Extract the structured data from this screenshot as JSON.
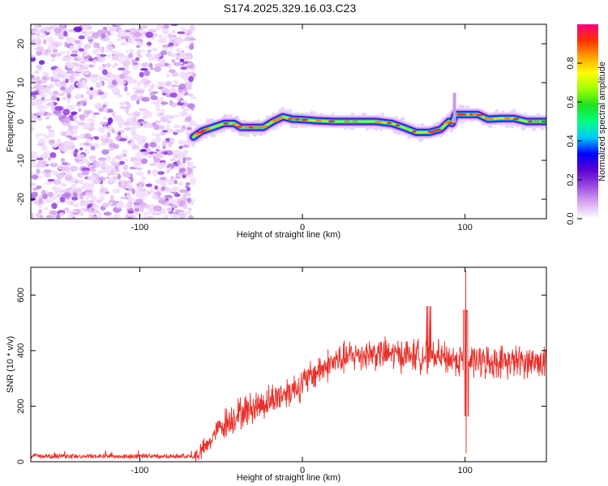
{
  "title": "S174.2025.329.16.03.C23",
  "chart_data": [
    {
      "type": "heatmap",
      "name": "spectrogram",
      "xlabel": "Height of straight line (km)",
      "ylabel": "Frequency (Hz)",
      "xlim": [
        -167,
        150
      ],
      "ylim": [
        -25,
        25
      ],
      "xticks": [
        -100,
        0,
        100
      ],
      "yticks": [
        -20,
        -10,
        0,
        10,
        20
      ],
      "noise_region_x": [
        -167,
        -67
      ],
      "ridge": [
        {
          "x": -67,
          "y": -4
        },
        {
          "x": -62,
          "y": -2.5
        },
        {
          "x": -55,
          "y": -1.5
        },
        {
          "x": -48,
          "y": -0.5
        },
        {
          "x": -42,
          "y": -0.5
        },
        {
          "x": -38,
          "y": -1.5
        },
        {
          "x": -30,
          "y": -1.5
        },
        {
          "x": -24,
          "y": -1.5
        },
        {
          "x": -18,
          "y": 0
        },
        {
          "x": -12,
          "y": 1.2
        },
        {
          "x": -6,
          "y": 0.6
        },
        {
          "x": 0,
          "y": 0.5
        },
        {
          "x": 8,
          "y": 0.2
        },
        {
          "x": 20,
          "y": 0
        },
        {
          "x": 35,
          "y": 0
        },
        {
          "x": 45,
          "y": 0
        },
        {
          "x": 55,
          "y": -0.5
        },
        {
          "x": 62,
          "y": -1.5
        },
        {
          "x": 70,
          "y": -2.8
        },
        {
          "x": 78,
          "y": -2.8
        },
        {
          "x": 85,
          "y": -2
        },
        {
          "x": 90,
          "y": 0
        },
        {
          "x": 92,
          "y": -0.5
        },
        {
          "x": 94,
          "y": 1.8
        },
        {
          "x": 100,
          "y": 1.8
        },
        {
          "x": 108,
          "y": 1.8
        },
        {
          "x": 114,
          "y": 0.6
        },
        {
          "x": 122,
          "y": 0.8
        },
        {
          "x": 130,
          "y": 0.8
        },
        {
          "x": 138,
          "y": 0
        },
        {
          "x": 150,
          "y": 0
        }
      ],
      "colorbar": {
        "label": "Normalized spectral amplitude",
        "range": [
          0,
          1
        ],
        "ticks": [
          "0.0",
          "0.2",
          "0.4",
          "0.6",
          "0.8"
        ],
        "tick_values": [
          0,
          0.2,
          0.4,
          0.6,
          0.8
        ],
        "colors": [
          "#ffffff",
          "#d9a8f0",
          "#9b4ae0",
          "#5a00d0",
          "#0000ff",
          "#00c8ff",
          "#00ff80",
          "#20e020",
          "#a0ff00",
          "#ffff00",
          "#ffa000",
          "#ff3000",
          "#ff0080"
        ]
      }
    },
    {
      "type": "line",
      "name": "snr",
      "xlabel": "Height of straight line (km)",
      "ylabel": "SNR (10 * v/v)",
      "xlim": [
        -167,
        150
      ],
      "ylim": [
        0,
        700
      ],
      "xticks": [
        -100,
        0,
        100
      ],
      "yticks": [
        0,
        200,
        400,
        600
      ],
      "color": "#e8302a",
      "envelope": [
        {
          "x": -167,
          "y": 20
        },
        {
          "x": -100,
          "y": 20
        },
        {
          "x": -66,
          "y": 20
        },
        {
          "x": -58,
          "y": 60
        },
        {
          "x": -52,
          "y": 120
        },
        {
          "x": -40,
          "y": 170
        },
        {
          "x": -20,
          "y": 220
        },
        {
          "x": -10,
          "y": 250
        },
        {
          "x": 0,
          "y": 280
        },
        {
          "x": 10,
          "y": 330
        },
        {
          "x": 20,
          "y": 360
        },
        {
          "x": 30,
          "y": 380
        },
        {
          "x": 40,
          "y": 390
        },
        {
          "x": 60,
          "y": 385
        },
        {
          "x": 80,
          "y": 380
        },
        {
          "x": 90,
          "y": 370
        },
        {
          "x": 110,
          "y": 360
        },
        {
          "x": 130,
          "y": 360
        },
        {
          "x": 150,
          "y": 360
        }
      ],
      "spike": {
        "x": 100.5,
        "peak": 690,
        "trough": 30
      }
    }
  ]
}
